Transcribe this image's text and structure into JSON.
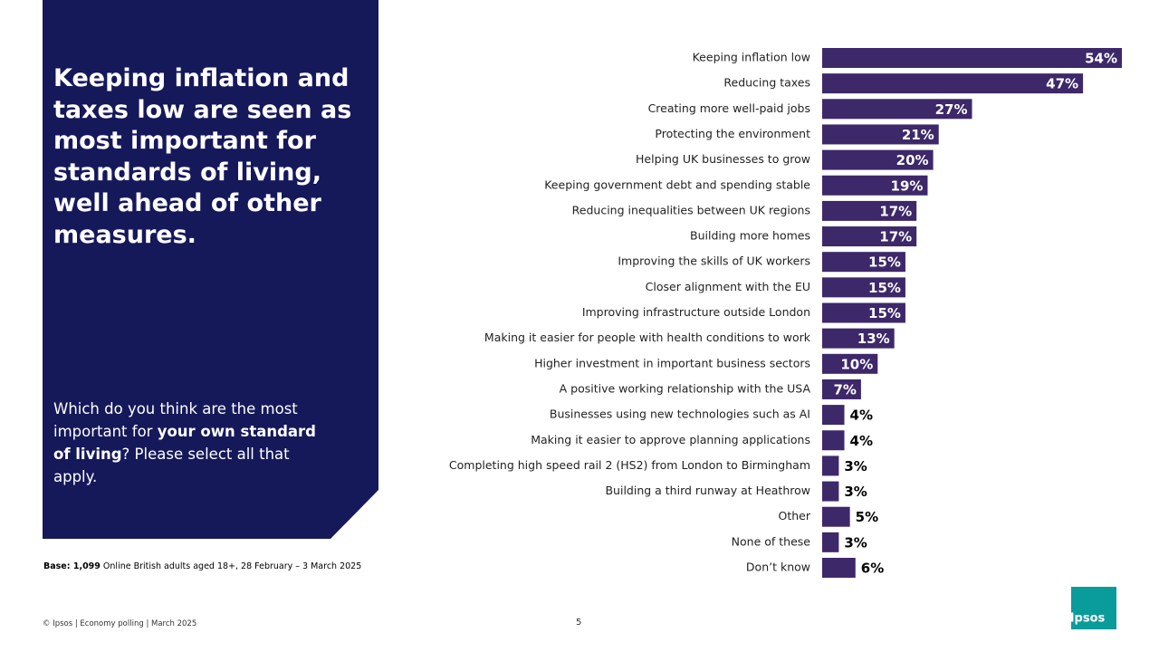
{
  "slide": {
    "headline": "Keeping inflation and taxes low are seen as most important for standards of living, well ahead of other measures.",
    "question": [
      {
        "text": "Which do you think are the most important for ",
        "bold": false
      },
      {
        "text": "your own standard of living",
        "bold": true
      },
      {
        "text": "? Please select all that apply.",
        "bold": false
      }
    ],
    "base": [
      {
        "text": "Base: 1,099",
        "bold": true
      },
      {
        "text": " Online British adults aged 18+, 28 February – 3 March 2025",
        "bold": false
      }
    ],
    "footer": "© Ipsos | Economy polling | March 2025",
    "page_number": "5",
    "logo": "Ipsos"
  },
  "chart_data": {
    "type": "hbar",
    "color": "#3d2869",
    "categories": [
      "Keeping inflation low",
      "Reducing taxes",
      "Creating more well-paid jobs",
      "Protecting the environment",
      "Helping UK businesses to grow",
      "Keeping government debt and spending stable",
      "Reducing inequalities between UK regions",
      "Building more homes",
      "Improving the skills of UK workers",
      "Closer alignment with the EU",
      "Improving infrastructure outside London",
      "Making it easier for people with health conditions to work",
      "Higher investment in important business sectors",
      "A positive working relationship with the USA",
      "Businesses using new technologies such as AI",
      "Making it easier to approve planning applications",
      "Completing high speed rail 2 (HS2) from London to Birmingham",
      "Building a third runway at Heathrow",
      "Other",
      "None of these",
      "Don’t know"
    ],
    "values": [
      54,
      47,
      27,
      21,
      20,
      19,
      17,
      17,
      15,
      15,
      15,
      13,
      10,
      7,
      4,
      4,
      3,
      3,
      5,
      3,
      6
    ],
    "value_labels": [
      "54%",
      "47%",
      "27%",
      "21%",
      "20%",
      "19%",
      "17%",
      "17%",
      "15%",
      "15%",
      "15%",
      "13%",
      "10%",
      "7%",
      "4%",
      "4%",
      "3%",
      "3%",
      "5%",
      "3%",
      "6%"
    ]
  }
}
